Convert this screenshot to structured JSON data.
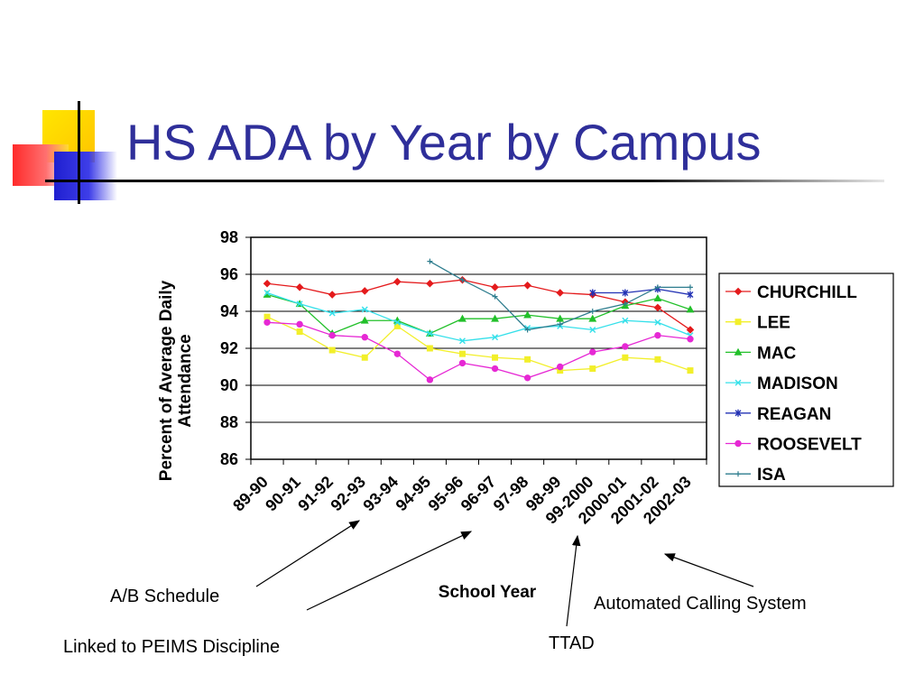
{
  "slide": {
    "title": "HS ADA by Year by Campus"
  },
  "colors": {
    "title": "#2f2f9a",
    "deco_yellow": "#ffd400",
    "deco_red": "#ff3a3a",
    "deco_blue": "#2a2ad8"
  },
  "annotations": [
    {
      "text": "A/B Schedule",
      "points_to": "93-94"
    },
    {
      "text": "Linked to PEIMS Discipline",
      "points_to": "96-97"
    },
    {
      "text": "TTAD",
      "points_to": "2000-01"
    },
    {
      "text": "Automated Calling System",
      "points_to": "2002-03"
    }
  ],
  "chart_data": {
    "type": "line",
    "title": "",
    "xlabel": "School Year",
    "ylabel": "Percent of Average Daily Attendance",
    "ylim": [
      86,
      98
    ],
    "yticks": [
      86,
      88,
      90,
      92,
      94,
      96,
      98
    ],
    "grid": true,
    "legend_position": "right",
    "categories": [
      "89-90",
      "90-91",
      "91-92",
      "92-93",
      "93-94",
      "94-95",
      "95-96",
      "96-97",
      "97-98",
      "98-99",
      "99-2000",
      "2000-01",
      "2001-02",
      "2002-03"
    ],
    "series": [
      {
        "name": "CHURCHILL",
        "color": "#e41a1c",
        "marker": "diamond",
        "values": [
          95.5,
          95.3,
          94.9,
          95.1,
          95.6,
          95.5,
          95.7,
          95.3,
          95.4,
          95.0,
          94.9,
          94.5,
          94.2,
          93.0
        ]
      },
      {
        "name": "LEE",
        "color": "#f2ef2a",
        "marker": "square",
        "values": [
          93.7,
          92.9,
          91.9,
          91.5,
          93.2,
          92.0,
          91.7,
          91.5,
          91.4,
          90.8,
          90.9,
          91.5,
          91.4,
          90.8
        ]
      },
      {
        "name": "MAC",
        "color": "#22c02a",
        "marker": "triangle",
        "values": [
          94.9,
          94.4,
          92.8,
          93.5,
          93.5,
          92.8,
          93.6,
          93.6,
          93.8,
          93.6,
          93.6,
          94.3,
          94.7,
          94.1
        ]
      },
      {
        "name": "MADISON",
        "color": "#35e0ea",
        "marker": "x",
        "values": [
          95.0,
          94.4,
          93.9,
          94.1,
          93.4,
          92.8,
          92.4,
          92.6,
          93.1,
          93.2,
          93.0,
          93.5,
          93.4,
          92.7
        ]
      },
      {
        "name": "REAGAN",
        "color": "#2332b4",
        "marker": "star",
        "values": [
          null,
          null,
          null,
          null,
          null,
          null,
          null,
          null,
          null,
          null,
          95.0,
          95.0,
          95.2,
          94.9
        ]
      },
      {
        "name": "ROOSEVELT",
        "color": "#e628d4",
        "marker": "circle",
        "values": [
          93.4,
          93.3,
          92.7,
          92.6,
          91.7,
          90.3,
          91.2,
          90.9,
          90.4,
          91.0,
          91.8,
          92.1,
          92.7,
          92.5
        ]
      },
      {
        "name": "ISA",
        "color": "#2e7d8e",
        "marker": "plus",
        "values": [
          null,
          null,
          null,
          null,
          null,
          96.7,
          95.7,
          94.8,
          93.0,
          93.3,
          94.0,
          94.4,
          95.3,
          95.3
        ]
      }
    ]
  }
}
